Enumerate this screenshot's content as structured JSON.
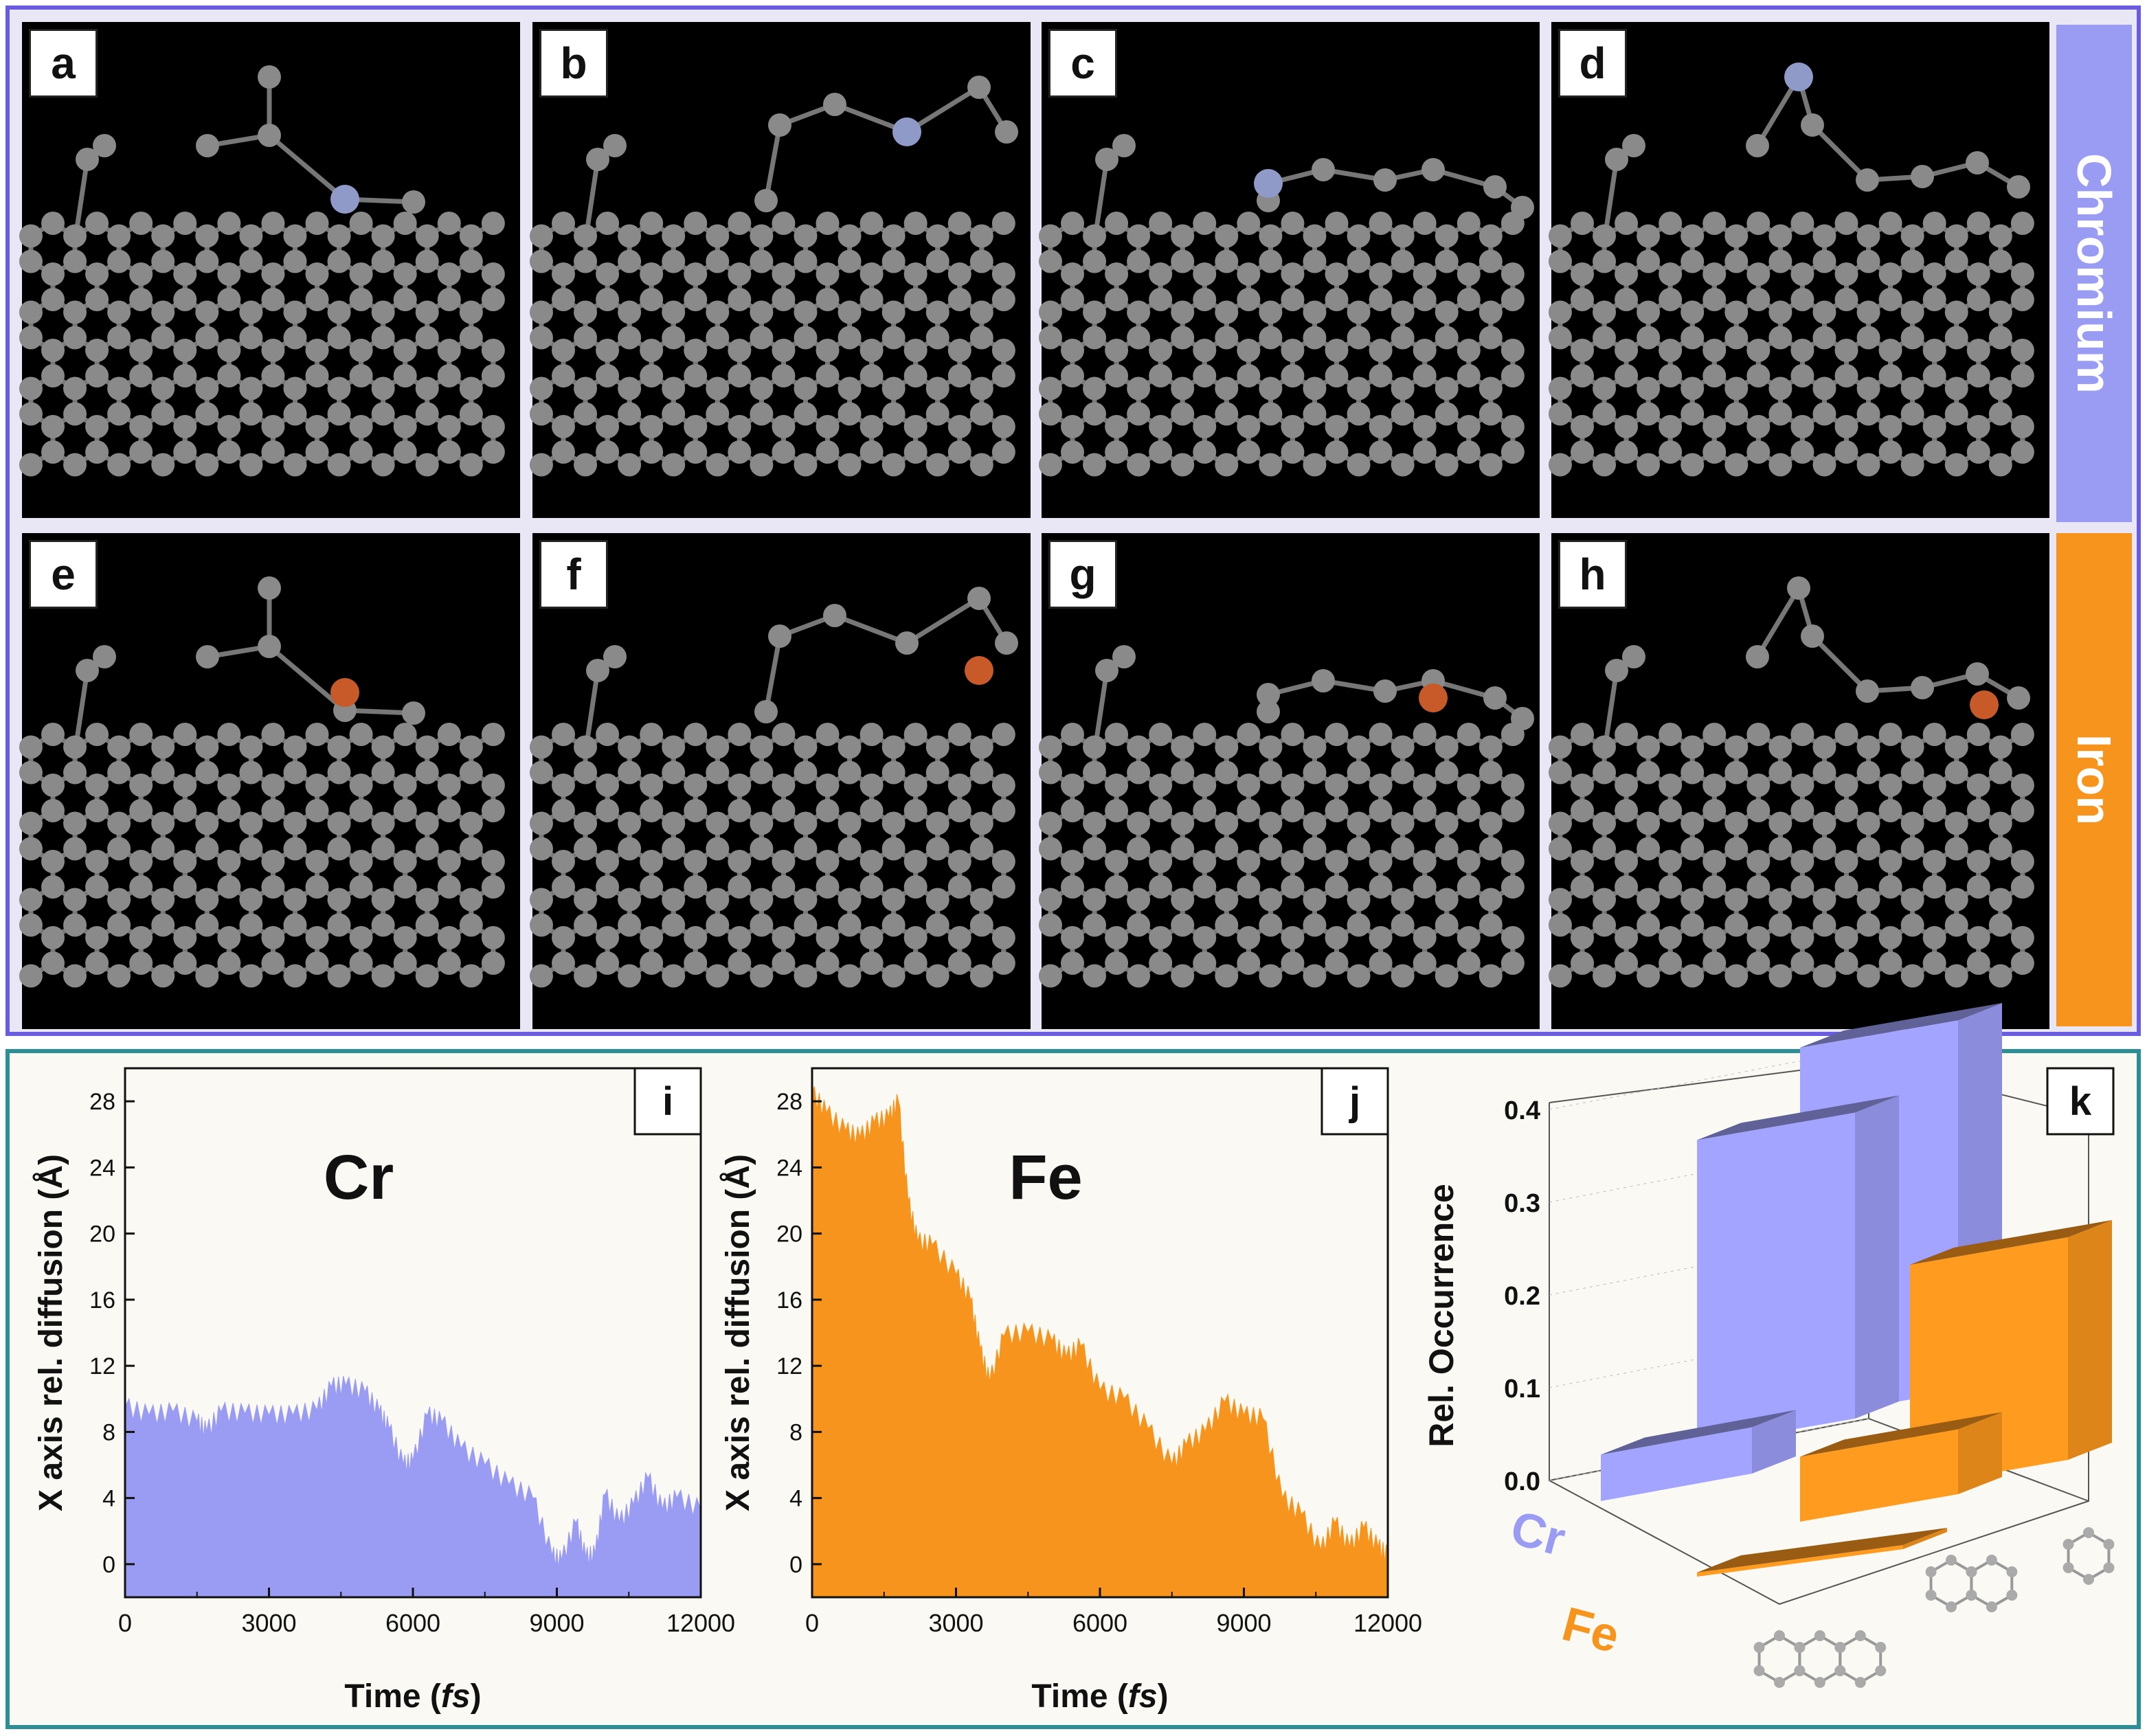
{
  "structures": {
    "panels": [
      {
        "label": "a",
        "metal": "Cr"
      },
      {
        "label": "b",
        "metal": "Cr"
      },
      {
        "label": "c",
        "metal": "Cr"
      },
      {
        "label": "d",
        "metal": "Cr"
      },
      {
        "label": "e",
        "metal": "Fe"
      },
      {
        "label": "f",
        "metal": "Fe"
      },
      {
        "label": "g",
        "metal": "Fe"
      },
      {
        "label": "h",
        "metal": "Fe"
      }
    ],
    "row_labels": {
      "chromium": "Chromium",
      "iron": "Iron"
    },
    "colors": {
      "chromium": "#9a9cf4",
      "iron": "#f7941d",
      "carbon": "#8a8a8a",
      "cr_atom": "#8f9ac8",
      "fe_atom": "#c85a2a"
    }
  },
  "chart_data": [
    {
      "type": "area",
      "panel": "i",
      "title": "Cr",
      "xlabel": "Time (fs)",
      "ylabel": "X axis rel. diffusion (Å)",
      "xlim": [
        0,
        12000
      ],
      "ylim": [
        -2,
        30
      ],
      "xticks": [
        0,
        3000,
        6000,
        9000,
        12000
      ],
      "yticks": [
        0,
        4,
        8,
        12,
        16,
        20,
        24,
        28
      ],
      "color": "#9a9cf4",
      "x": [
        0,
        500,
        1000,
        1500,
        1700,
        2000,
        2500,
        3000,
        3500,
        4000,
        4300,
        4600,
        5000,
        5300,
        5500,
        5800,
        6000,
        6300,
        6600,
        7000,
        7500,
        8000,
        8500,
        8900,
        9100,
        9400,
        9600,
        9800,
        10000,
        10300,
        10600,
        10900,
        11200,
        11500,
        12000
      ],
      "y": [
        9.5,
        9.0,
        9.2,
        8.6,
        8.0,
        9.2,
        9.1,
        9.0,
        9.0,
        9.3,
        10.7,
        10.8,
        10.4,
        9.2,
        8.2,
        6.0,
        6.2,
        9.0,
        8.6,
        7.0,
        6.0,
        4.8,
        4.0,
        0.5,
        0.2,
        2.5,
        0.4,
        0.6,
        4.2,
        2.5,
        3.6,
        5.2,
        3.3,
        4.0,
        3.3
      ]
    },
    {
      "type": "area",
      "panel": "j",
      "title": "Fe",
      "xlabel": "Time (fs)",
      "ylabel": "X axis rel. diffusion (Å)",
      "xlim": [
        0,
        12000
      ],
      "ylim": [
        -2,
        30
      ],
      "xticks": [
        0,
        3000,
        6000,
        9000,
        12000
      ],
      "yticks": [
        0,
        4,
        8,
        12,
        16,
        20,
        24,
        28
      ],
      "color": "#f7941d",
      "x": [
        0,
        300,
        700,
        1000,
        1300,
        1600,
        1800,
        2000,
        2200,
        2500,
        3000,
        3300,
        3500,
        3700,
        4000,
        4500,
        5000,
        5300,
        5600,
        6000,
        6500,
        7000,
        7500,
        7800,
        8200,
        8600,
        9000,
        9400,
        9800,
        10200,
        10600,
        10900,
        11200,
        11500,
        11800,
        12000
      ],
      "y": [
        28.5,
        27.3,
        26.2,
        25.8,
        26.7,
        27.0,
        28.0,
        22.0,
        19.5,
        19.3,
        17.5,
        16.0,
        13.0,
        11.0,
        13.8,
        14.0,
        13.5,
        12.5,
        13.2,
        10.5,
        10.0,
        8.2,
        6.0,
        7.2,
        8.0,
        9.8,
        9.0,
        8.8,
        4.0,
        3.0,
        0.8,
        2.5,
        1.0,
        2.2,
        1.0,
        0.5
      ]
    },
    {
      "type": "bar3d",
      "panel": "k",
      "ylabel": "Rel. Occurrence",
      "zticks": [
        "0.0",
        "0.1",
        "0.2",
        "0.3",
        "0.4"
      ],
      "series": [
        {
          "name": "Cr",
          "values": [
            0.05,
            0.33,
            0.4
          ],
          "color": "#9a9cf4"
        },
        {
          "name": "Fe",
          "values": [
            0.0,
            0.07,
            0.24
          ],
          "color": "#f7941d"
        }
      ],
      "categories": [
        "three-ring",
        "two-ring",
        "one-ring"
      ]
    }
  ]
}
